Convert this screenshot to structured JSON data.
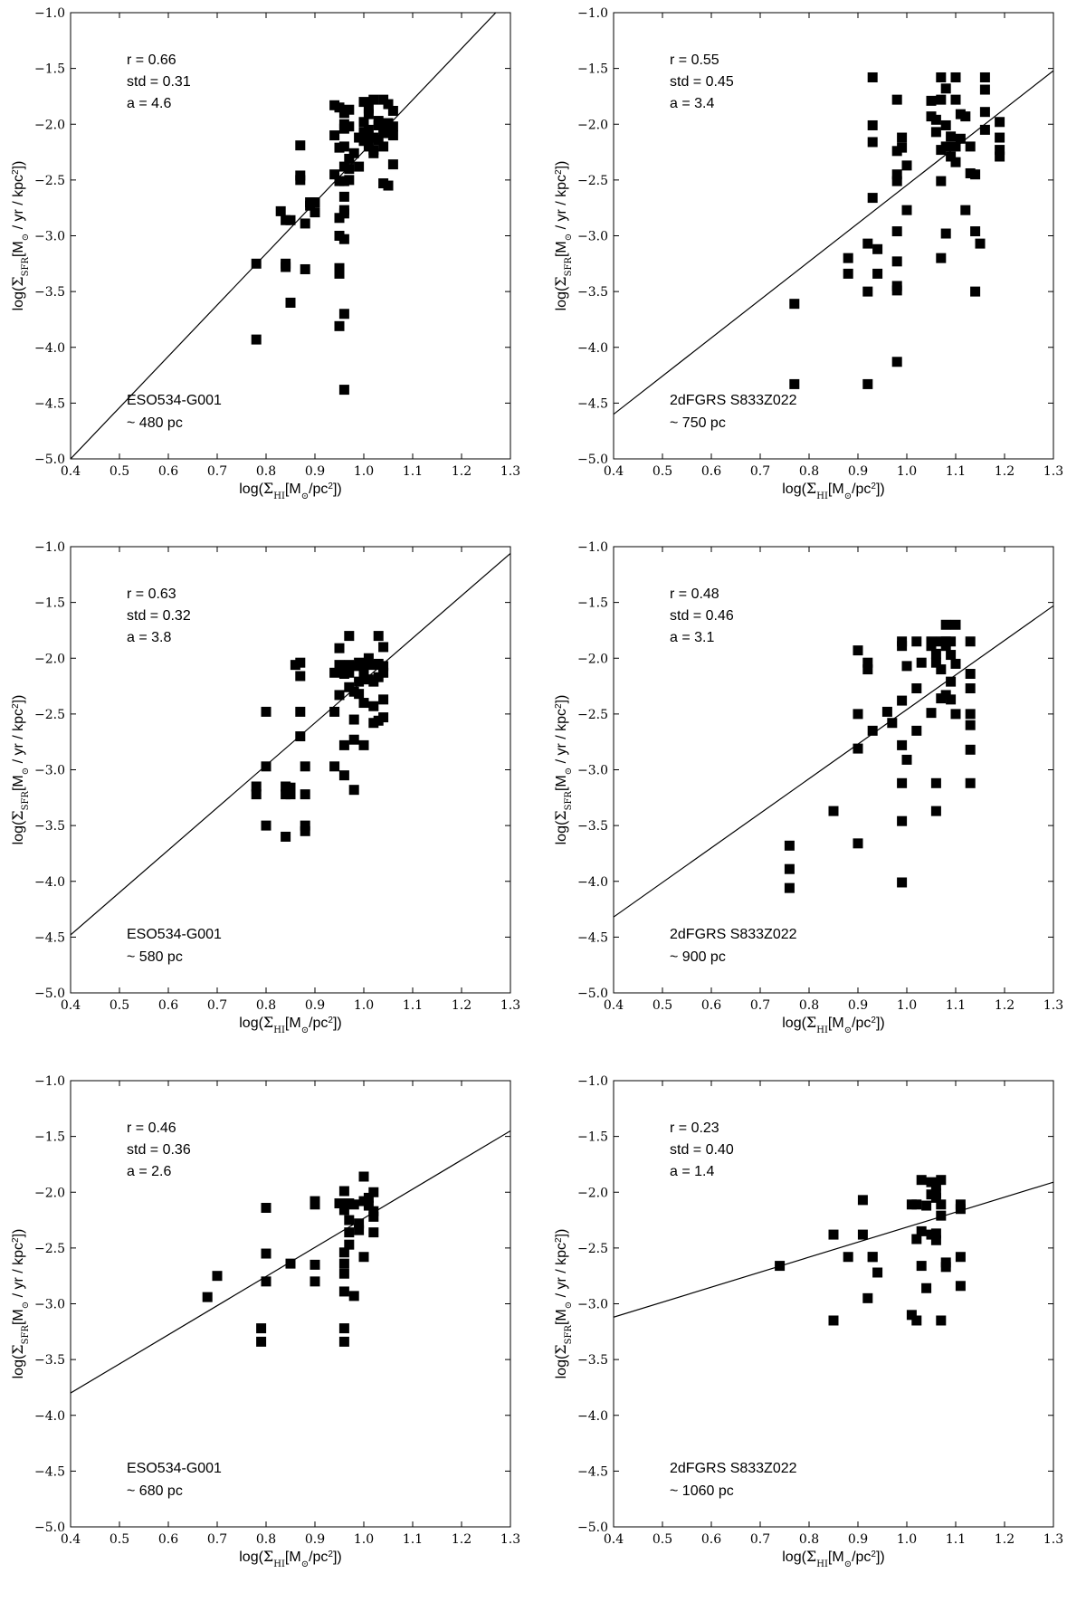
{
  "chart_data": [
    {
      "type": "scatter",
      "galaxy": "ESO534-G001",
      "scale": "~ 480 pc",
      "stats": {
        "r": "r = 0.66",
        "std": "std = 0.31",
        "a": "a = 4.6"
      },
      "xlabel": "log(Σ_HI[M_⊙/pc²])",
      "ylabel": "log(Σ_SFR[M_⊙ / yr / kpc²])",
      "xlim": [
        0.4,
        1.3
      ],
      "ylim": [
        -5.0,
        -1.0
      ],
      "xticks": [
        "0.4",
        "0.5",
        "0.6",
        "0.7",
        "0.8",
        "0.9",
        "1.0",
        "1.1",
        "1.2",
        "1.3"
      ],
      "yticks": [
        "-1.0",
        "-1.5",
        "-2.0",
        "-2.5",
        "-3.0",
        "-3.5",
        "-4.0",
        "-4.5",
        "-5.0"
      ],
      "fit_line": {
        "x": [
          0.4,
          1.27
        ],
        "y": [
          -5.0,
          -1.0
        ]
      },
      "x": [
        0.78,
        0.78,
        0.83,
        0.84,
        0.84,
        0.84,
        0.85,
        0.85,
        0.85,
        0.87,
        0.87,
        0.87,
        0.88,
        0.88,
        0.89,
        0.89,
        0.9,
        0.9,
        0.94,
        0.94,
        0.94,
        0.95,
        0.95,
        0.95,
        0.95,
        0.95,
        0.95,
        0.96,
        0.96,
        0.96,
        0.96,
        0.96,
        0.96,
        0.96,
        0.96,
        0.96,
        0.97,
        0.97,
        0.97,
        0.97,
        0.97,
        0.98,
        0.99,
        0.99,
        1.0,
        1.0,
        1.0,
        1.0,
        1.01,
        1.01,
        1.01,
        1.01,
        1.02,
        1.02,
        1.02,
        1.02,
        1.03,
        1.03,
        1.03,
        1.04,
        1.04,
        1.04,
        1.04,
        1.05,
        1.05,
        1.05,
        1.05,
        1.06,
        1.06,
        1.06,
        1.06,
        0.95,
        0.95,
        0.96,
        0.96,
        0.96
      ],
      "y": [
        -3.25,
        -3.93,
        -2.78,
        -2.86,
        -3.25,
        -3.28,
        -2.86,
        -3.6,
        -3.6,
        -2.19,
        -2.46,
        -2.5,
        -2.89,
        -3.3,
        -2.7,
        -2.73,
        -2.7,
        -2.79,
        -2.45,
        -1.83,
        -2.1,
        -1.85,
        -2.21,
        -2.51,
        -2.84,
        -3.81,
        -3.29,
        -2.04,
        -2.38,
        -2.65,
        -2.77,
        -3.03,
        -4.38,
        -1.9,
        -2.51,
        -2.8,
        -2.02,
        -2.31,
        -2.5,
        -2.4,
        -1.87,
        -2.26,
        -2.12,
        -2.38,
        -1.98,
        -2.07,
        -2.15,
        -1.8,
        -2.2,
        -2.05,
        -1.86,
        -1.91,
        -2.12,
        -2.23,
        -2.26,
        -1.78,
        -1.97,
        -2.01,
        -2.14,
        -1.78,
        -2.08,
        -2.2,
        -2.53,
        -1.99,
        -2.05,
        -2.55,
        -1.82,
        -1.88,
        -2.02,
        -2.1,
        -2.36,
        -3.0,
        -3.34,
        -3.7,
        -2.2,
        -2.0
      ]
    },
    {
      "type": "scatter",
      "galaxy": "2dFGRS S833Z022",
      "scale": "~ 750 pc",
      "stats": {
        "r": "r = 0.55",
        "std": "std = 0.45",
        "a": "a = 3.4"
      },
      "xlabel": "log(Σ_HI[M_⊙/pc²])",
      "ylabel": "log(Σ_SFR[M_⊙ / yr / kpc²])",
      "xlim": [
        0.4,
        1.3
      ],
      "ylim": [
        -5.0,
        -1.0
      ],
      "xticks": [
        "0.4",
        "0.5",
        "0.6",
        "0.7",
        "0.8",
        "0.9",
        "1.0",
        "1.1",
        "1.2",
        "1.3"
      ],
      "yticks": [
        "-1.0",
        "-1.5",
        "-2.0",
        "-2.5",
        "-3.0",
        "-3.5",
        "-4.0",
        "-4.5",
        "-5.0"
      ],
      "fit_line": {
        "x": [
          0.4,
          1.3
        ],
        "y": [
          -4.6,
          -1.52
        ]
      },
      "x": [
        0.77,
        0.77,
        0.88,
        0.88,
        0.92,
        0.92,
        0.92,
        0.93,
        0.93,
        0.93,
        0.93,
        0.94,
        0.94,
        0.98,
        0.98,
        0.98,
        0.98,
        0.98,
        0.98,
        0.98,
        0.98,
        0.98,
        0.99,
        0.99,
        1.0,
        1.0,
        1.05,
        1.05,
        1.06,
        1.06,
        1.07,
        1.07,
        1.07,
        1.07,
        1.07,
        1.08,
        1.08,
        1.08,
        1.08,
        1.09,
        1.09,
        1.1,
        1.1,
        1.1,
        1.1,
        1.11,
        1.11,
        1.12,
        1.12,
        1.13,
        1.13,
        1.14,
        1.14,
        1.14,
        1.15,
        1.16,
        1.16,
        1.16,
        1.16,
        1.19,
        1.19,
        1.19,
        1.19
      ],
      "y": [
        -3.61,
        -4.33,
        -3.2,
        -3.34,
        -3.07,
        -3.5,
        -4.33,
        -1.58,
        -2.01,
        -2.16,
        -2.66,
        -3.12,
        -3.34,
        -1.78,
        -2.24,
        -2.45,
        -2.51,
        -2.96,
        -3.23,
        -3.45,
        -3.49,
        -4.13,
        -2.21,
        -2.12,
        -2.37,
        -2.77,
        -1.79,
        -1.93,
        -1.96,
        -2.07,
        -1.58,
        -1.78,
        -2.23,
        -2.51,
        -3.2,
        -1.68,
        -2.01,
        -2.2,
        -2.98,
        -2.11,
        -2.29,
        -1.58,
        -1.78,
        -2.34,
        -2.2,
        -1.91,
        -2.13,
        -1.93,
        -2.77,
        -2.2,
        -2.44,
        -2.45,
        -2.96,
        -3.5,
        -3.07,
        -1.58,
        -1.69,
        -1.89,
        -2.05,
        -1.98,
        -2.12,
        -2.23,
        -2.29
      ]
    },
    {
      "type": "scatter",
      "galaxy": "ESO534-G001",
      "scale": "~ 580 pc",
      "stats": {
        "r": "r = 0.63",
        "std": "std = 0.32",
        "a": "a = 3.8"
      },
      "xlabel": "log(Σ_HI[M_⊙/pc²])",
      "ylabel": "log(Σ_SFR[M_⊙ / yr / kpc²])",
      "xlim": [
        0.4,
        1.3
      ],
      "ylim": [
        -5.0,
        -1.0
      ],
      "xticks": [
        "0.4",
        "0.5",
        "0.6",
        "0.7",
        "0.8",
        "0.9",
        "1.0",
        "1.1",
        "1.2",
        "1.3"
      ],
      "yticks": [
        "-1.0",
        "-1.5",
        "-2.0",
        "-2.5",
        "-3.0",
        "-3.5",
        "-4.0",
        "-4.5",
        "-5.0"
      ],
      "fit_line": {
        "x": [
          0.4,
          1.3
        ],
        "y": [
          -4.48,
          -1.06
        ]
      },
      "x": [
        0.78,
        0.78,
        0.8,
        0.8,
        0.8,
        0.84,
        0.84,
        0.84,
        0.85,
        0.85,
        0.86,
        0.87,
        0.87,
        0.87,
        0.87,
        0.88,
        0.88,
        0.88,
        0.88,
        0.94,
        0.94,
        0.94,
        0.95,
        0.95,
        0.95,
        0.96,
        0.96,
        0.96,
        0.97,
        0.97,
        0.97,
        0.97,
        0.98,
        0.98,
        0.98,
        0.98,
        0.98,
        0.99,
        0.99,
        0.99,
        1.0,
        1.0,
        1.0,
        1.0,
        1.01,
        1.01,
        1.02,
        1.02,
        1.02,
        1.02,
        1.03,
        1.03,
        1.03,
        1.03,
        1.04,
        1.04,
        1.04,
        1.04,
        1.04
      ],
      "y": [
        -3.15,
        -3.22,
        -2.48,
        -2.97,
        -3.5,
        -3.22,
        -3.6,
        -3.15,
        -3.22,
        -3.16,
        -2.06,
        -2.04,
        -2.16,
        -2.48,
        -2.7,
        -2.97,
        -3.22,
        -3.5,
        -3.55,
        -2.13,
        -2.48,
        -2.97,
        -1.91,
        -2.06,
        -2.33,
        -2.14,
        -2.78,
        -3.05,
        -1.8,
        -2.06,
        -2.13,
        -2.26,
        -2.07,
        -2.3,
        -2.55,
        -2.73,
        -3.18,
        -2.04,
        -2.21,
        -2.32,
        -2.08,
        -2.14,
        -2.4,
        -2.78,
        -2.0,
        -2.19,
        -2.06,
        -2.21,
        -2.43,
        -2.58,
        -1.8,
        -2.05,
        -2.17,
        -2.56,
        -1.9,
        -2.07,
        -2.13,
        -2.37,
        -2.53
      ]
    },
    {
      "type": "scatter",
      "galaxy": "2dFGRS S833Z022",
      "scale": "~ 900 pc",
      "stats": {
        "r": "r = 0.48",
        "std": "std = 0.46",
        "a": "a = 3.1"
      },
      "xlabel": "log(Σ_HI[M_⊙/pc²])",
      "ylabel": "log(Σ_SFR[M_⊙ / yr / kpc²])",
      "xlim": [
        0.4,
        1.3
      ],
      "ylim": [
        -5.0,
        -1.0
      ],
      "xticks": [
        "0.4",
        "0.5",
        "0.6",
        "0.7",
        "0.8",
        "0.9",
        "1.0",
        "1.1",
        "1.2",
        "1.3"
      ],
      "yticks": [
        "-1.0",
        "-1.5",
        "-2.0",
        "-2.5",
        "-3.0",
        "-3.5",
        "-4.0",
        "-4.5",
        "-5.0"
      ],
      "fit_line": {
        "x": [
          0.4,
          1.3
        ],
        "y": [
          -4.32,
          -1.53
        ]
      },
      "x": [
        0.76,
        0.76,
        0.76,
        0.85,
        0.9,
        0.9,
        0.9,
        0.9,
        0.92,
        0.92,
        0.93,
        0.96,
        0.97,
        0.99,
        0.99,
        0.99,
        0.99,
        0.99,
        0.99,
        0.99,
        1.0,
        1.0,
        1.02,
        1.02,
        1.02,
        1.03,
        1.05,
        1.05,
        1.05,
        1.06,
        1.06,
        1.06,
        1.06,
        1.07,
        1.07,
        1.07,
        1.08,
        1.08,
        1.08,
        1.08,
        1.09,
        1.09,
        1.09,
        1.09,
        1.1,
        1.1,
        1.1,
        1.13,
        1.13,
        1.13,
        1.13,
        1.13,
        1.13,
        1.13
      ],
      "y": [
        -3.68,
        -3.89,
        -4.06,
        -3.37,
        -1.93,
        -2.5,
        -2.81,
        -3.66,
        -2.04,
        -2.1,
        -2.65,
        -2.48,
        -2.58,
        -1.85,
        -1.89,
        -2.38,
        -2.78,
        -3.12,
        -3.46,
        -4.01,
        -2.07,
        -2.91,
        -1.85,
        -2.27,
        -2.65,
        -2.04,
        -1.85,
        -1.89,
        -2.49,
        -1.96,
        -2.04,
        -3.12,
        -3.37,
        -1.85,
        -2.1,
        -2.36,
        -1.7,
        -1.85,
        -1.89,
        -2.33,
        -1.85,
        -1.97,
        -2.21,
        -2.37,
        -1.7,
        -2.05,
        -2.5,
        -1.85,
        -2.14,
        -2.27,
        -2.5,
        -2.6,
        -2.82,
        -3.12
      ]
    },
    {
      "type": "scatter",
      "galaxy": "ESO534-G001",
      "scale": "~ 680 pc",
      "stats": {
        "r": "r = 0.46",
        "std": "std = 0.36",
        "a": "a = 2.6"
      },
      "xlabel": "log(Σ_HI[M_⊙/pc²])",
      "ylabel": "log(Σ_SFR[M_⊙ / yr / kpc²])",
      "xlim": [
        0.4,
        1.3
      ],
      "ylim": [
        -5.0,
        -1.0
      ],
      "xticks": [
        "0.4",
        "0.5",
        "0.6",
        "0.7",
        "0.8",
        "0.9",
        "1.0",
        "1.1",
        "1.2",
        "1.3"
      ],
      "yticks": [
        "-1.0",
        "-1.5",
        "-2.0",
        "-2.5",
        "-3.0",
        "-3.5",
        "-4.0",
        "-4.5",
        "-5.0"
      ],
      "fit_line": {
        "x": [
          0.4,
          1.3
        ],
        "y": [
          -3.8,
          -1.45
        ]
      },
      "x": [
        0.68,
        0.7,
        0.79,
        0.79,
        0.8,
        0.8,
        0.8,
        0.85,
        0.9,
        0.9,
        0.9,
        0.9,
        0.95,
        0.96,
        0.96,
        0.96,
        0.96,
        0.96,
        0.96,
        0.96,
        0.96,
        0.97,
        0.97,
        0.97,
        0.97,
        0.98,
        0.98,
        0.99,
        0.99,
        1.0,
        1.0,
        1.0,
        1.01,
        1.01,
        1.02,
        1.02,
        1.02,
        1.02
      ],
      "y": [
        -2.94,
        -2.75,
        -3.22,
        -3.34,
        -2.14,
        -2.55,
        -2.8,
        -2.64,
        -2.08,
        -2.11,
        -2.65,
        -2.8,
        -2.1,
        -1.99,
        -2.16,
        -2.54,
        -2.64,
        -2.73,
        -2.89,
        -3.22,
        -3.34,
        -2.1,
        -2.25,
        -2.36,
        -2.47,
        -2.11,
        -2.93,
        -2.28,
        -2.34,
        -1.86,
        -2.08,
        -2.58,
        -2.05,
        -2.12,
        -2.0,
        -2.17,
        -2.22,
        -2.36
      ]
    },
    {
      "type": "scatter",
      "galaxy": "2dFGRS S833Z022",
      "scale": "~ 1060 pc",
      "stats": {
        "r": "r = 0.23",
        "std": "std = 0.40",
        "a": "a = 1.4"
      },
      "xlabel": "log(Σ_HI[M_⊙/pc²])",
      "ylabel": "log(Σ_SFR[M_⊙ / yr / kpc²])",
      "xlim": [
        0.4,
        1.3
      ],
      "ylim": [
        -5.0,
        -1.0
      ],
      "xticks": [
        "0.4",
        "0.5",
        "0.6",
        "0.7",
        "0.8",
        "0.9",
        "1.0",
        "1.1",
        "1.2",
        "1.3"
      ],
      "yticks": [
        "-1.0",
        "-1.5",
        "-2.0",
        "-2.5",
        "-3.0",
        "-3.5",
        "-4.0",
        "-4.5",
        "-5.0"
      ],
      "fit_line": {
        "x": [
          0.4,
          1.3
        ],
        "y": [
          -3.12,
          -1.91
        ]
      },
      "x": [
        0.74,
        0.85,
        0.85,
        0.88,
        0.91,
        0.91,
        0.92,
        0.93,
        0.93,
        0.94,
        1.01,
        1.01,
        1.02,
        1.02,
        1.02,
        1.03,
        1.03,
        1.03,
        1.04,
        1.04,
        1.05,
        1.05,
        1.05,
        1.06,
        1.06,
        1.06,
        1.06,
        1.06,
        1.07,
        1.07,
        1.07,
        1.07,
        1.08,
        1.08,
        1.11,
        1.11,
        1.11,
        1.11
      ],
      "y": [
        -2.66,
        -2.38,
        -3.15,
        -2.58,
        -2.07,
        -2.38,
        -2.95,
        -2.58,
        -2.58,
        -2.72,
        -2.11,
        -3.1,
        -2.42,
        -2.11,
        -3.15,
        -1.89,
        -2.35,
        -2.66,
        -2.12,
        -2.86,
        -1.91,
        -2.02,
        -2.38,
        -1.94,
        -2.01,
        -2.05,
        -2.37,
        -2.43,
        -1.89,
        -2.11,
        -2.21,
        -3.15,
        -2.63,
        -2.67,
        -2.11,
        -2.15,
        -2.58,
        -2.84
      ]
    }
  ]
}
